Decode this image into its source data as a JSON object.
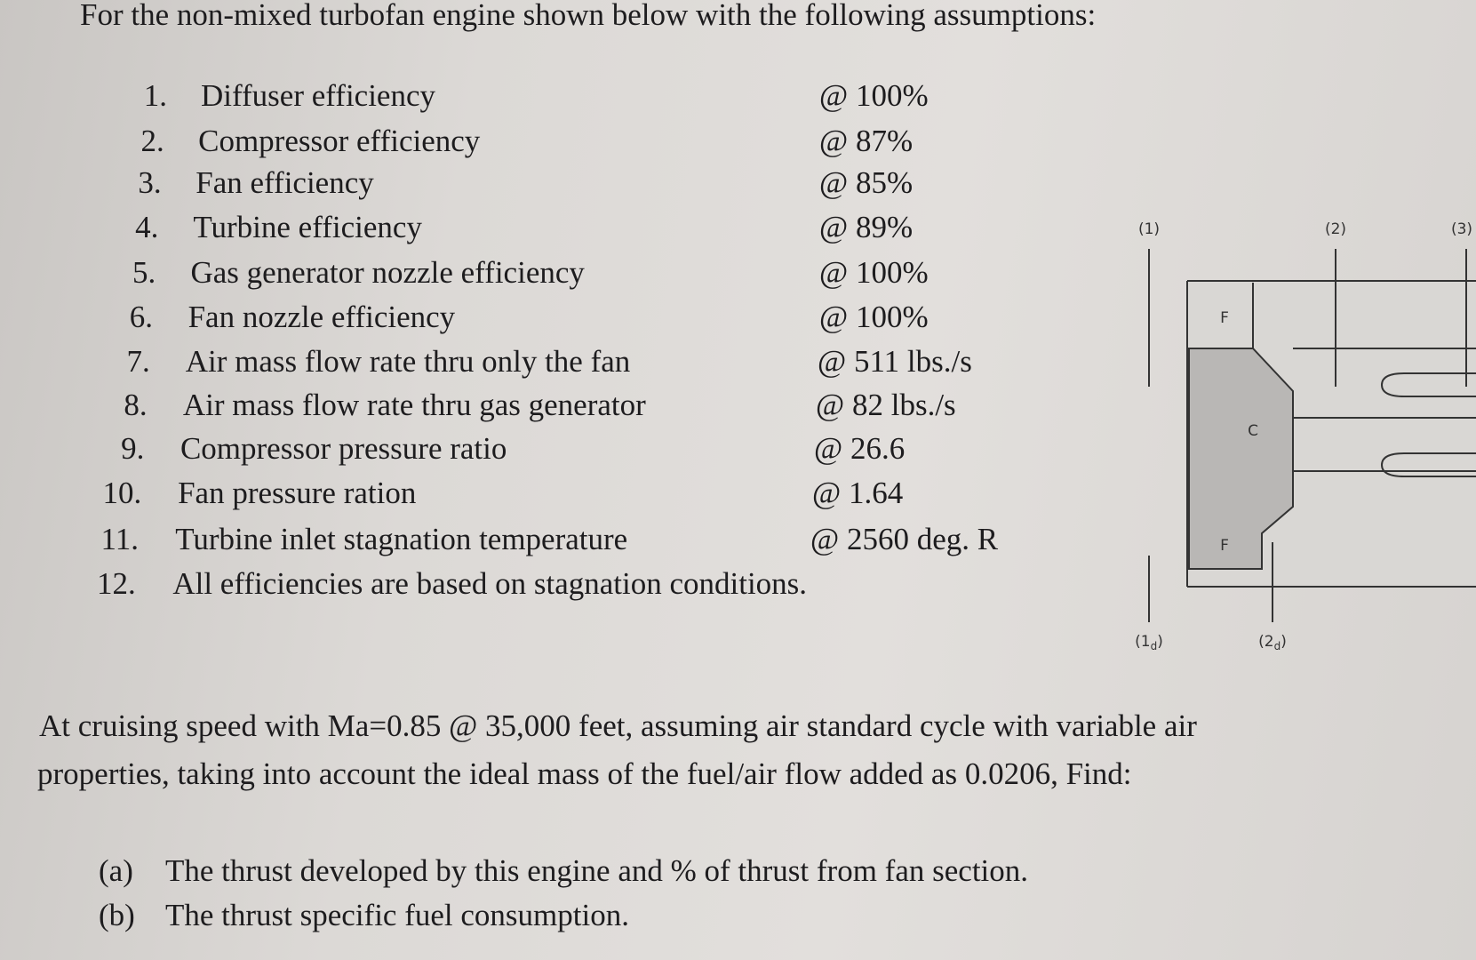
{
  "header": {
    "title": "For the non-mixed turbofan engine shown below with the following assumptions:"
  },
  "assumptions": [
    {
      "number": "1.",
      "label": "Diffuser efficiency",
      "value": "@ 100%"
    },
    {
      "number": "2.",
      "label": "Compressor efficiency",
      "value": "@ 87%"
    },
    {
      "number": "3.",
      "label": "Fan efficiency",
      "value": "@ 85%"
    },
    {
      "number": "4.",
      "label": "Turbine efficiency",
      "value": "@ 89%"
    },
    {
      "number": "5.",
      "label": "Gas generator nozzle efficiency",
      "value": "@ 100%"
    },
    {
      "number": "6.",
      "label": "Fan nozzle efficiency",
      "value": "@ 100%"
    },
    {
      "number": "7.",
      "label": "Air mass flow rate thru only the fan",
      "value": "@ 511 lbs./s"
    },
    {
      "number": "8.",
      "label": "Air mass flow rate thru gas generator",
      "value": "@ 82 lbs./s"
    },
    {
      "number": "9.",
      "label": "Compressor pressure ratio",
      "value": "@ 26.6"
    },
    {
      "number": "10.",
      "label": "Fan pressure ration",
      "value": "@ 1.64"
    },
    {
      "number": "11.",
      "label": "Turbine inlet stagnation temperature",
      "value": "@ 2560 deg. R"
    },
    {
      "number": "12.",
      "label": "All efficiencies are based on stagnation conditions."
    }
  ],
  "diagram": {
    "stations": [
      "(1)",
      "(2)",
      "(3)"
    ],
    "bottom_stations": [
      {
        "main": "(1",
        "sub": "d",
        "end": ")"
      },
      {
        "main": "(2",
        "sub": "d",
        "end": ")"
      }
    ],
    "components": [
      "F",
      "C",
      "F"
    ]
  },
  "paragraph": [
    "At cruising speed with Ma=0.85 @ 35,000 feet, assuming air standard cycle with variable air",
    "properties, taking into account the ideal mass of the fuel/air flow added as 0.0206, Find:"
  ],
  "questions": [
    {
      "letter": "(a)",
      "text": "The thrust developed by this engine and % of thrust from fan section."
    },
    {
      "letter": "(b)",
      "text": "The thrust specific fuel consumption."
    }
  ]
}
